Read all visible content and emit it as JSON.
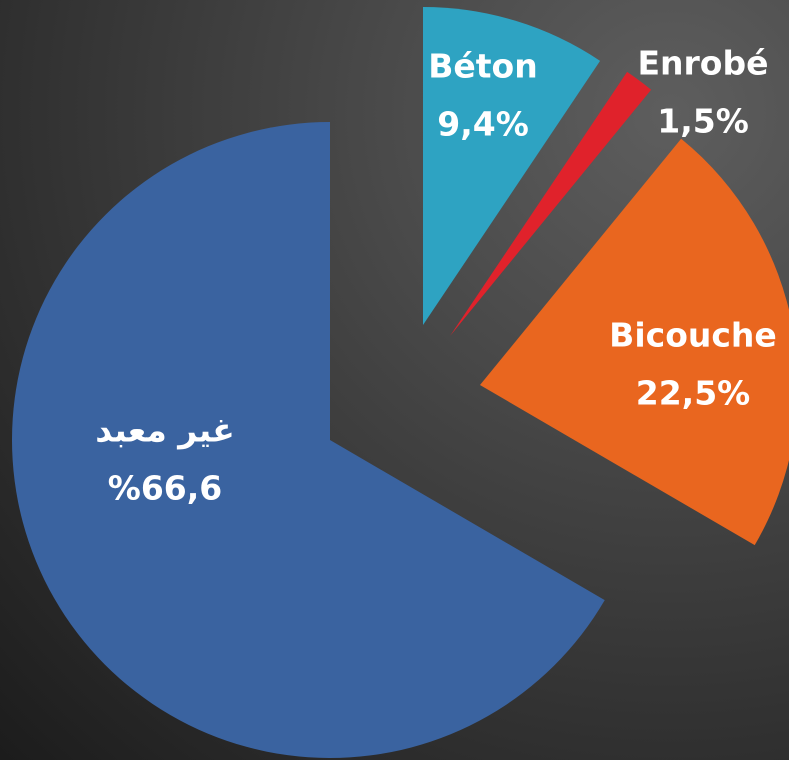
{
  "chart_data": {
    "type": "pie",
    "categories": [
      "Béton",
      "Enrobé",
      "Bicouche",
      "غير معبد"
    ],
    "values": [
      9.4,
      1.5,
      22.5,
      66.6
    ],
    "value_labels": [
      "9,4%",
      "1,5%",
      "22,5%",
      "%66,6"
    ],
    "colors": [
      "#2ea3c2",
      "#e0222b",
      "#e9661f",
      "#3a63a0"
    ]
  }
}
